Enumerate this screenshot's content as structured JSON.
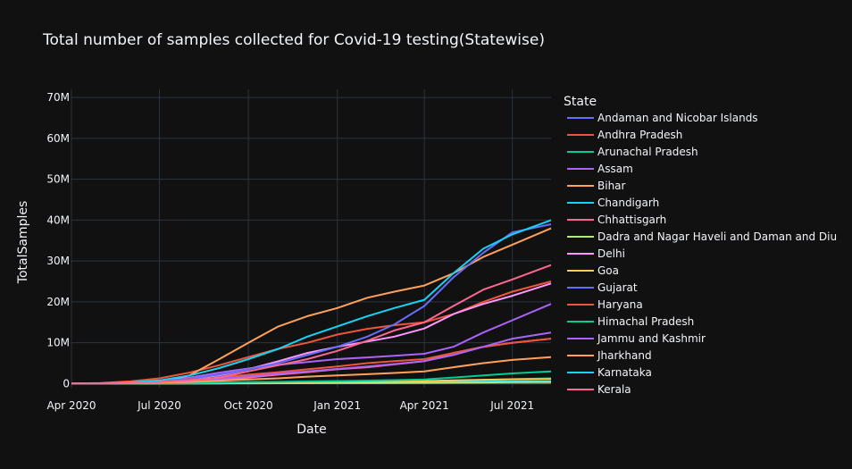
{
  "chart_data": {
    "type": "line",
    "title": "Total number of samples collected for Covid-19 testing(Statewise)",
    "xlabel": "Date",
    "ylabel": "TotalSamples",
    "legend_title": "State",
    "legend_position": "right",
    "grid": true,
    "x_ticks": [
      "Apr 2020",
      "Jul 2020",
      "Oct 2020",
      "Jan 2021",
      "Apr 2021",
      "Jul 2021"
    ],
    "x_tick_dates": [
      "2020-04-01",
      "2020-07-01",
      "2020-10-01",
      "2021-01-01",
      "2021-04-01",
      "2021-07-01"
    ],
    "xlim": [
      "2020-04-01",
      "2021-08-10"
    ],
    "y_ticks": [
      0,
      10000000,
      20000000,
      30000000,
      40000000,
      50000000,
      60000000,
      70000000
    ],
    "y_tick_labels": [
      "0",
      "10M",
      "20M",
      "30M",
      "40M",
      "50M",
      "60M",
      "70M"
    ],
    "ylim": [
      -1000000,
      72000000
    ],
    "x": [
      "2020-04-01",
      "2020-05-01",
      "2020-06-01",
      "2020-07-01",
      "2020-08-01",
      "2020-09-01",
      "2020-10-01",
      "2020-11-01",
      "2020-12-01",
      "2021-01-01",
      "2021-02-01",
      "2021-03-01",
      "2021-04-01",
      "2021-05-01",
      "2021-06-01",
      "2021-07-01",
      "2021-08-10"
    ],
    "series": [
      {
        "name": "Andaman and Nicobar Islands",
        "color": "#636efa",
        "values": [
          0,
          1000,
          5000,
          12000,
          30000,
          60000,
          90000,
          120000,
          150000,
          180000,
          200000,
          220000,
          250000,
          300000,
          350000,
          400000,
          450000
        ]
      },
      {
        "name": "Andhra Pradesh",
        "color": "#ef553b",
        "values": [
          0,
          150000,
          550000,
          1300000,
          2700000,
          4500000,
          6500000,
          8500000,
          10000000,
          12000000,
          13400000,
          14300000,
          15000000,
          17000000,
          20000000,
          22500000,
          25000000
        ]
      },
      {
        "name": "Arunachal Pradesh",
        "color": "#00cc96",
        "values": [
          0,
          5000,
          20000,
          40000,
          80000,
          150000,
          230000,
          300000,
          350000,
          400000,
          450000,
          500000,
          560000,
          700000,
          900000,
          1100000,
          1300000
        ]
      },
      {
        "name": "Assam",
        "color": "#ab63fa",
        "values": [
          0,
          50000,
          200000,
          600000,
          1500000,
          2700000,
          3700000,
          4600000,
          5300000,
          6000000,
          6400000,
          6800000,
          7300000,
          9000000,
          12500000,
          15500000,
          19500000
        ]
      },
      {
        "name": "Bihar",
        "color": "#ffa15a",
        "values": [
          0,
          30000,
          180000,
          400000,
          2000000,
          6000000,
          10000000,
          14000000,
          16500000,
          18500000,
          21000000,
          22500000,
          24000000,
          27000000,
          31000000,
          34000000,
          38000000
        ]
      },
      {
        "name": "Chandigarh",
        "color": "#19d3f3",
        "values": [
          0,
          2000,
          10000,
          30000,
          60000,
          100000,
          150000,
          190000,
          230000,
          270000,
          300000,
          330000,
          380000,
          450000,
          500000,
          550000,
          600000
        ]
      },
      {
        "name": "Chhattisgarh",
        "color": "#ff6692",
        "values": [
          0,
          30000,
          100000,
          200000,
          400000,
          800000,
          1500000,
          2200000,
          2800000,
          3500000,
          4000000,
          4700000,
          5500000,
          7500000,
          9000000,
          10000000,
          11000000
        ]
      },
      {
        "name": "Dadra and Nagar Haveli and Daman and Diu",
        "color": "#b6e880",
        "values": [
          0,
          1000,
          5000,
          10000,
          25000,
          50000,
          75000,
          100000,
          120000,
          140000,
          160000,
          180000,
          200000,
          250000,
          300000,
          350000,
          400000
        ]
      },
      {
        "name": "Delhi",
        "color": "#ff97ff",
        "values": [
          0,
          100000,
          300000,
          700000,
          1200000,
          2000000,
          3500000,
          5500000,
          7500000,
          9000000,
          10300000,
          11500000,
          13500000,
          17000000,
          19500000,
          21500000,
          24500000
        ]
      },
      {
        "name": "Goa",
        "color": "#fecb52",
        "values": [
          0,
          10000,
          40000,
          80000,
          150000,
          250000,
          330000,
          400000,
          450000,
          500000,
          550000,
          600000,
          650000,
          800000,
          950000,
          1050000,
          1150000
        ]
      },
      {
        "name": "Gujarat",
        "color": "#636efa",
        "values": [
          0,
          100000,
          300000,
          600000,
          1200000,
          2200000,
          3500000,
          5000000,
          7000000,
          9000000,
          11500000,
          14500000,
          19000000,
          26000000,
          32000000,
          37000000,
          39000000
        ]
      },
      {
        "name": "Haryana",
        "color": "#ef553b",
        "values": [
          0,
          50000,
          200000,
          450000,
          900000,
          1500000,
          2200000,
          2800000,
          3500000,
          4200000,
          5000000,
          5500000,
          6000000,
          7500000,
          9000000,
          10000000,
          11000000
        ]
      },
      {
        "name": "Himachal Pradesh",
        "color": "#00cc96",
        "values": [
          0,
          10000,
          40000,
          80000,
          150000,
          250000,
          350000,
          450000,
          550000,
          650000,
          750000,
          850000,
          1000000,
          1500000,
          2000000,
          2500000,
          3000000
        ]
      },
      {
        "name": "Jammu and Kashmir",
        "color": "#ab63fa",
        "values": [
          0,
          50000,
          150000,
          350000,
          700000,
          1200000,
          1800000,
          2400000,
          3000000,
          3600000,
          4200000,
          4800000,
          5500000,
          7000000,
          9000000,
          11000000,
          12500000
        ]
      },
      {
        "name": "Jharkhand",
        "color": "#ffa15a",
        "values": [
          0,
          20000,
          80000,
          200000,
          400000,
          700000,
          1000000,
          1300000,
          1700000,
          2000000,
          2300000,
          2600000,
          3000000,
          4000000,
          5000000,
          5800000,
          6500000
        ]
      },
      {
        "name": "Karnataka",
        "color": "#19d3f3",
        "values": [
          0,
          100000,
          300000,
          800000,
          2000000,
          3800000,
          6000000,
          8500000,
          11500000,
          14000000,
          16500000,
          18500000,
          20500000,
          27000000,
          33000000,
          36500000,
          40000000
        ]
      },
      {
        "name": "Kerala",
        "color": "#ff6692",
        "values": [
          0,
          50000,
          150000,
          350000,
          800000,
          1500000,
          3000000,
          4500000,
          6000000,
          8000000,
          10500000,
          13000000,
          15000000,
          19000000,
          23000000,
          25500000,
          29000000
        ]
      }
    ]
  }
}
